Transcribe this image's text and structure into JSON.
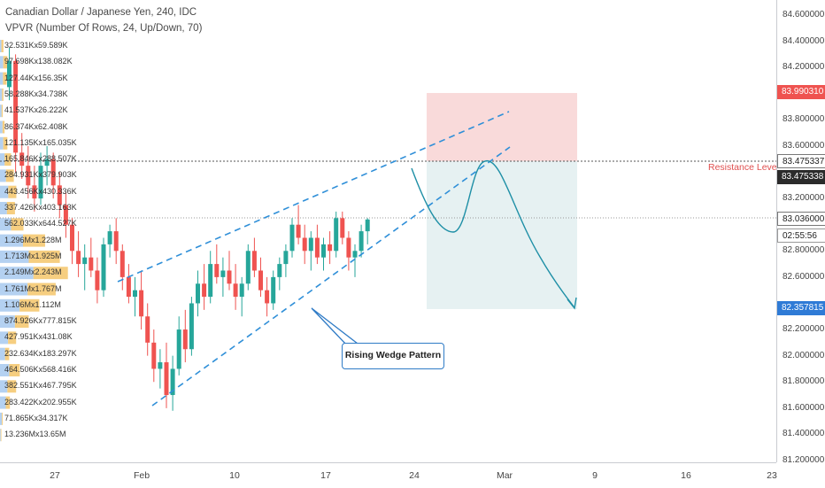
{
  "chart_header": {
    "title": "Canadian Dollar / Japanese Yen, 240, IDC",
    "indicator": "VPVR (Number Of Rows, 24, Up/Down, 70)"
  },
  "price_axis": {
    "ticks": [
      "84.600000",
      "84.400000",
      "84.200000",
      "83.800000",
      "83.600000",
      "83.200000",
      "82.800000",
      "82.600000",
      "82.200000",
      "82.000000",
      "81.800000",
      "81.600000",
      "81.400000",
      "81.200000"
    ],
    "badges": {
      "target_price": "83.990310",
      "resistance_price_1": "83.475337",
      "resistance_price_2": "83.475338",
      "current_price": "83.036000",
      "countdown": "02:55:56",
      "stop_price": "82.357815"
    }
  },
  "time_axis": {
    "labels": [
      "27",
      "Feb",
      "10",
      "17",
      "24",
      "Mar",
      "9",
      "16",
      "23"
    ]
  },
  "volume_profile": {
    "labels": [
      "32.531Kx59.589K",
      "97.698Kx138.082K",
      "127.44Kx156.35K",
      "58.288Kx34.738K",
      "41.537Kx26.222K",
      "86.374Kx62.408K",
      "121.135Kx165.035K",
      "165.846Kx288.507K",
      "284.931Kx379.903K",
      "443.456Kx430.336K",
      "337.426Kx403.163K",
      "562.033Kx644.527K",
      "1.296Mx1.228M",
      "1.713Mx1.925M",
      "2.149Mx2.243M",
      "1.761Mx1.767M",
      "1.106Mx1.112M",
      "874.926Kx777.815K",
      "427.951Kx431.08K",
      "232.634Kx183.297K",
      "464.506Kx568.416K",
      "382.551Kx467.795K",
      "283.422Kx202.955K",
      "71.865Kx34.317K",
      "13.236Mx13.65M"
    ],
    "up": [
      0.6,
      1.4,
      1.3,
      0.9,
      0.7,
      1.1,
      1.4,
      2.0,
      2.6,
      3.6,
      3.0,
      4.8,
      10,
      12.5,
      14.5,
      12,
      8.5,
      6.5,
      3.5,
      2.2,
      4,
      3.2,
      2.5,
      0.8,
      0.3
    ],
    "down": [
      0.9,
      1.8,
      1.6,
      0.6,
      0.5,
      0.9,
      1.8,
      2.8,
      3.4,
      3.5,
      3.5,
      5.4,
      9.6,
      13.5,
      15,
      12.2,
      8.6,
      6,
      3.5,
      1.8,
      4.6,
      3.8,
      1.8,
      0.4,
      0.3
    ]
  },
  "annotations": {
    "callout": "Rising Wedge Pattern",
    "resistance": "Resistance Level"
  },
  "colors": {
    "up_candle": "#26a69a",
    "down_candle": "#ef5350",
    "trendline": "#2f8fd8",
    "projection": "#1e8fa6",
    "target_zone": "#f8d3d3",
    "stop_zone": "#e3eff1",
    "vp_up": "#a7c9ee",
    "vp_down": "#f5c56a",
    "badge_red": "#ef5350",
    "badge_dark": "#2b2b2b",
    "badge_blue": "#2f7bd6"
  },
  "chart_data": {
    "type": "candlestick",
    "symbol": "CADJPY",
    "y_range": [
      81.2,
      84.7
    ],
    "x_labels": [
      "27",
      "Feb",
      "10",
      "17",
      "24",
      "Mar",
      "9",
      "16",
      "23"
    ],
    "candles": [
      [
        84.05,
        84.35,
        83.95,
        84.25
      ],
      [
        84.25,
        84.3,
        83.4,
        83.55
      ],
      [
        83.55,
        83.7,
        83.35,
        83.45
      ],
      [
        83.45,
        83.6,
        83.2,
        83.3
      ],
      [
        83.3,
        83.45,
        83.1,
        83.2
      ],
      [
        83.2,
        83.55,
        83.15,
        83.45
      ],
      [
        83.45,
        83.6,
        83.3,
        83.5
      ],
      [
        83.5,
        83.55,
        83.2,
        83.3
      ],
      [
        83.3,
        83.4,
        83.05,
        83.15
      ],
      [
        83.15,
        83.25,
        82.9,
        83.0
      ],
      [
        83.0,
        83.05,
        82.7,
        82.8
      ],
      [
        82.8,
        82.95,
        82.6,
        82.7
      ],
      [
        82.7,
        82.85,
        82.5,
        82.75
      ],
      [
        82.75,
        82.9,
        82.6,
        82.65
      ],
      [
        82.65,
        82.75,
        82.4,
        82.5
      ],
      [
        82.5,
        82.9,
        82.45,
        82.85
      ],
      [
        82.85,
        83.0,
        82.75,
        82.95
      ],
      [
        82.95,
        83.05,
        82.7,
        82.8
      ],
      [
        82.8,
        82.85,
        82.5,
        82.6
      ],
      [
        82.6,
        82.7,
        82.4,
        82.45
      ],
      [
        82.45,
        82.6,
        82.3,
        82.5
      ],
      [
        82.5,
        82.65,
        82.2,
        82.3
      ],
      [
        82.3,
        82.4,
        82.0,
        82.1
      ],
      [
        82.1,
        82.2,
        81.8,
        81.9
      ],
      [
        81.9,
        82.05,
        81.75,
        81.95
      ],
      [
        81.95,
        82.1,
        81.6,
        81.7
      ],
      [
        81.7,
        82.0,
        81.58,
        81.9
      ],
      [
        81.9,
        82.3,
        81.85,
        82.2
      ],
      [
        82.2,
        82.35,
        81.95,
        82.05
      ],
      [
        82.05,
        82.45,
        82.0,
        82.4
      ],
      [
        82.4,
        82.65,
        82.3,
        82.55
      ],
      [
        82.55,
        82.7,
        82.35,
        82.45
      ],
      [
        82.45,
        82.8,
        82.4,
        82.7
      ],
      [
        82.7,
        82.85,
        82.55,
        82.6
      ],
      [
        82.6,
        82.75,
        82.45,
        82.65
      ],
      [
        82.65,
        82.8,
        82.5,
        82.55
      ],
      [
        82.55,
        82.7,
        82.35,
        82.45
      ],
      [
        82.45,
        82.6,
        82.3,
        82.55
      ],
      [
        82.55,
        82.85,
        82.5,
        82.8
      ],
      [
        82.8,
        82.9,
        82.6,
        82.65
      ],
      [
        82.65,
        82.75,
        82.45,
        82.5
      ],
      [
        82.5,
        82.6,
        82.3,
        82.4
      ],
      [
        82.4,
        82.65,
        82.35,
        82.6
      ],
      [
        82.6,
        82.75,
        82.5,
        82.7
      ],
      [
        82.7,
        82.85,
        82.6,
        82.8
      ],
      [
        82.8,
        83.05,
        82.75,
        83.0
      ],
      [
        83.0,
        83.15,
        82.85,
        82.9
      ],
      [
        82.9,
        83.0,
        82.7,
        82.8
      ],
      [
        82.8,
        82.95,
        82.65,
        82.9
      ],
      [
        82.9,
        83.0,
        82.7,
        82.75
      ],
      [
        82.75,
        82.9,
        82.65,
        82.85
      ],
      [
        82.85,
        82.95,
        82.7,
        82.8
      ],
      [
        82.8,
        83.1,
        82.75,
        83.05
      ],
      [
        83.05,
        83.1,
        82.85,
        82.9
      ],
      [
        82.9,
        82.95,
        82.65,
        82.75
      ],
      [
        82.75,
        82.85,
        82.6,
        82.8
      ],
      [
        82.8,
        83.0,
        82.75,
        82.95
      ],
      [
        82.95,
        83.05,
        82.85,
        83.04
      ]
    ]
  }
}
